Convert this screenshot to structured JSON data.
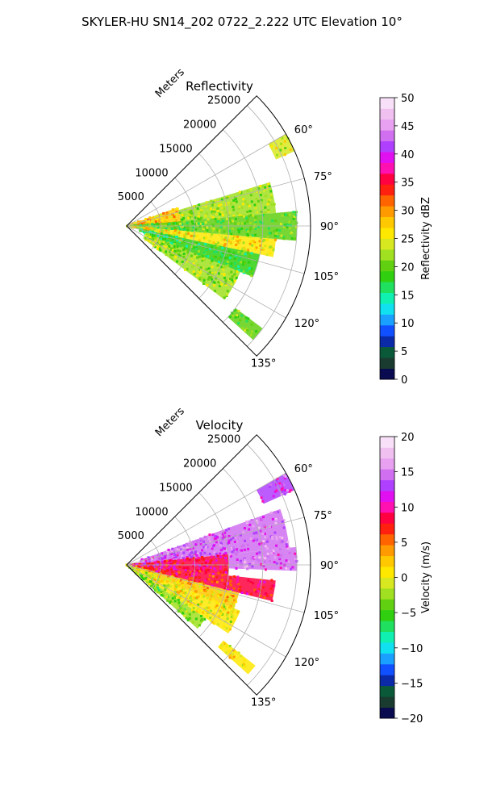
{
  "figure": {
    "title": "SKYLER-HU  SN14_202  0722_2.222 UTC Elevation 10°"
  },
  "chart_data": [
    {
      "type": "heatmap",
      "subtype": "polar-sector",
      "title": "Reflectivity",
      "radius_label": "Meters",
      "radius_ticks": [
        5000,
        10000,
        15000,
        20000,
        25000
      ],
      "radius_tick_labels": [
        "5000",
        "10000",
        "15000",
        "20000",
        "25000"
      ],
      "rlim": [
        0,
        27000
      ],
      "theta_range_deg": [
        45,
        135
      ],
      "theta_ticks": [
        60,
        75,
        90,
        105,
        120,
        135
      ],
      "theta_tick_labels": [
        "60°",
        "75°",
        "90°",
        "105°",
        "120°",
        "135°"
      ],
      "grid": true,
      "colorbar": {
        "label": "Reflectivity dBZ",
        "range": [
          0,
          50
        ],
        "ticks": [
          0,
          5,
          10,
          15,
          20,
          25,
          30,
          35,
          40,
          45,
          50
        ],
        "tick_labels": [
          "0",
          "5",
          "10",
          "15",
          "20",
          "25",
          "30",
          "35",
          "40",
          "45",
          "50"
        ],
        "colors": [
          "#0a0a50",
          "#1a3b2f",
          "#0a5a3a",
          "#0a2aa8",
          "#1050ff",
          "#1aa0ff",
          "#10e0f0",
          "#10f0b0",
          "#20e060",
          "#30d010",
          "#60d010",
          "#a0e020",
          "#d8e820",
          "#ffe800",
          "#ffc800",
          "#ff9a00",
          "#ff6400",
          "#ff2010",
          "#ff0040",
          "#ff10b0",
          "#e010f0",
          "#b040ff",
          "#d070f0",
          "#e8a0f0",
          "#f0c0f0",
          "#f8e0f8"
        ]
      },
      "regions": [
        {
          "theta": [
            60,
            66
          ],
          "r": [
            24000,
            27000
          ],
          "value": 24
        },
        {
          "theta": [
            70,
            90
          ],
          "r": [
            500,
            8000
          ],
          "value": 28
        },
        {
          "theta": [
            73,
            85
          ],
          "r": [
            8000,
            22000
          ],
          "value": 22
        },
        {
          "theta": [
            85,
            95
          ],
          "r": [
            0,
            25000
          ],
          "value": 20
        },
        {
          "theta": [
            95,
            102
          ],
          "r": [
            0,
            22000
          ],
          "value": 26
        },
        {
          "theta": [
            102,
            112
          ],
          "r": [
            2000,
            20000
          ],
          "value": 18
        },
        {
          "theta": [
            112,
            127
          ],
          "r": [
            3000,
            18000
          ],
          "value": 22
        },
        {
          "theta": [
            127,
            132
          ],
          "r": [
            20000,
            25000
          ],
          "value": 20
        }
      ]
    },
    {
      "type": "heatmap",
      "subtype": "polar-sector",
      "title": "Velocity",
      "radius_label": "Meters",
      "radius_ticks": [
        5000,
        10000,
        15000,
        20000,
        25000
      ],
      "radius_tick_labels": [
        "5000",
        "10000",
        "15000",
        "20000",
        "25000"
      ],
      "rlim": [
        0,
        27000
      ],
      "theta_range_deg": [
        45,
        135
      ],
      "theta_ticks": [
        60,
        75,
        90,
        105,
        120,
        135
      ],
      "theta_tick_labels": [
        "60°",
        "75°",
        "90°",
        "105°",
        "120°",
        "135°"
      ],
      "grid": true,
      "colorbar": {
        "label": "Velocity (m/s)",
        "range": [
          -20,
          20
        ],
        "ticks": [
          -20,
          -15,
          -10,
          -5,
          0,
          5,
          10,
          15,
          20
        ],
        "tick_labels": [
          "−20",
          "−15",
          "−10",
          "−5",
          "0",
          "5",
          "10",
          "15",
          "20"
        ],
        "colors": [
          "#0a0a50",
          "#1a3b2f",
          "#0a5a3a",
          "#0a2aa8",
          "#1050ff",
          "#1aa0ff",
          "#10e0f0",
          "#10f0b0",
          "#20e060",
          "#30d010",
          "#60d010",
          "#a0e020",
          "#d8e820",
          "#ffe800",
          "#ffc800",
          "#ff9a00",
          "#ff6400",
          "#ff2010",
          "#ff0040",
          "#ff10b0",
          "#e010f0",
          "#b040ff",
          "#d070f0",
          "#e8a0f0",
          "#f0c0f0",
          "#f8e0f8"
        ]
      },
      "regions": [
        {
          "theta": [
            60,
            66
          ],
          "r": [
            22000,
            27000
          ],
          "value": 13
        },
        {
          "theta": [
            70,
            84
          ],
          "r": [
            2000,
            24000
          ],
          "value": 14
        },
        {
          "theta": [
            84,
            96
          ],
          "r": [
            0,
            15000
          ],
          "value": 9
        },
        {
          "theta": [
            84,
            92
          ],
          "r": [
            15000,
            25000
          ],
          "value": 14
        },
        {
          "theta": [
            96,
            104
          ],
          "r": [
            0,
            22000
          ],
          "value": 8
        },
        {
          "theta": [
            104,
            112
          ],
          "r": [
            0,
            17000
          ],
          "value": 2
        },
        {
          "theta": [
            112,
            124
          ],
          "r": [
            0,
            18000
          ],
          "value": 0
        },
        {
          "theta": [
            124,
            132
          ],
          "r": [
            0,
            14000
          ],
          "value": -3
        },
        {
          "theta": [
            128,
            132
          ],
          "r": [
            18000,
            24000
          ],
          "value": 1
        }
      ]
    }
  ]
}
